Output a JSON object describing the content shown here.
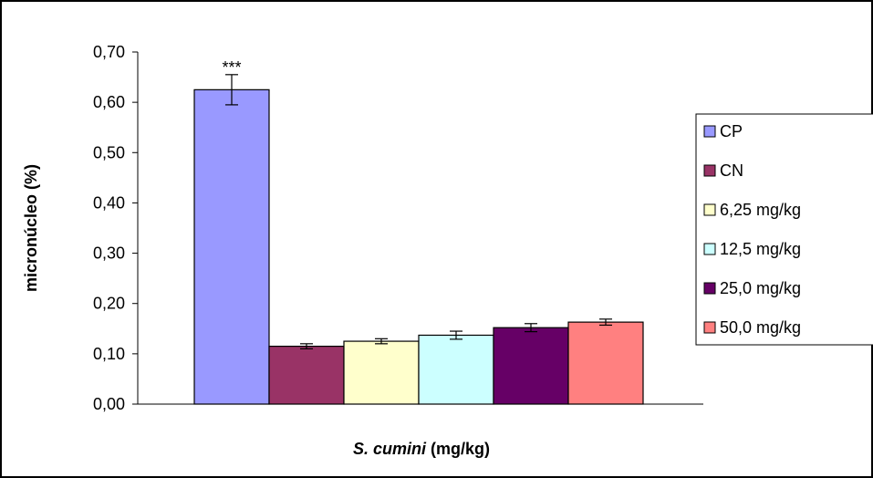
{
  "chart_data": {
    "type": "bar",
    "categories": [
      "CP",
      "CN",
      "6,25 mg/kg",
      "12,5 mg/kg",
      "25,0 mg/kg",
      "50,0 mg/kg"
    ],
    "values": [
      0.625,
      0.115,
      0.125,
      0.137,
      0.152,
      0.163
    ],
    "error": [
      0.03,
      0.005,
      0.005,
      0.008,
      0.008,
      0.006
    ],
    "colors": [
      "#9999ff",
      "#993366",
      "#ffffcc",
      "#ccffff",
      "#660066",
      "#ff8080"
    ],
    "annotations": [
      {
        "category": "CP",
        "text": "***"
      }
    ],
    "ylabel": "micronúcleo (%)",
    "xlabel_italic": "S. cumini",
    "xlabel_rest": " (mg/kg)",
    "ylim": [
      0,
      0.7
    ],
    "yticks": [
      "0,00",
      "0,10",
      "0,20",
      "0,30",
      "0,40",
      "0,50",
      "0,60",
      "0,70"
    ],
    "grid": false,
    "legend": {
      "position": "right",
      "entries": [
        "CP",
        "CN",
        "6,25 mg/kg",
        "12,5 mg/kg",
        "25,0 mg/kg",
        "50,0 mg/kg"
      ]
    }
  }
}
